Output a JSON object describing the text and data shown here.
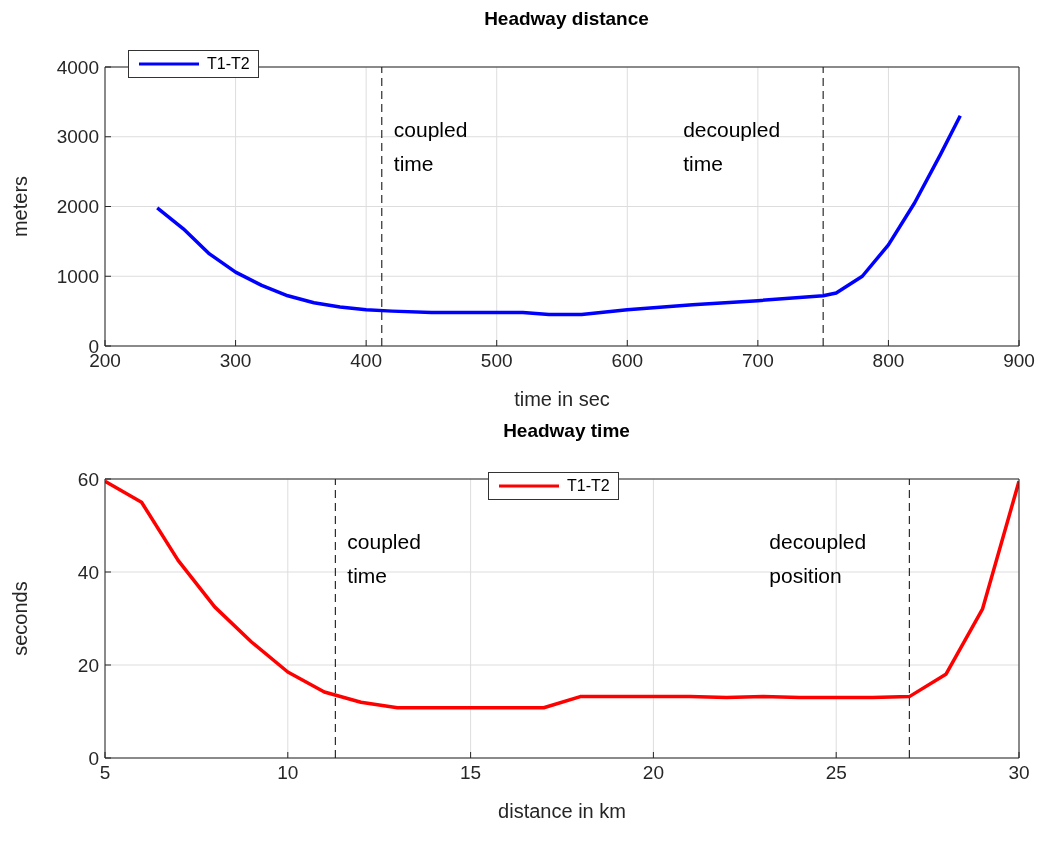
{
  "chart_data": [
    {
      "type": "line",
      "title": "Headway distance",
      "xlabel": "time in sec",
      "ylabel": "meters",
      "xlim": [
        200,
        900
      ],
      "xticks": [
        200,
        300,
        400,
        500,
        600,
        700,
        800,
        900
      ],
      "ylim": [
        0,
        4000
      ],
      "yticks": [
        0,
        1000,
        2000,
        3000,
        4000
      ],
      "grid": true,
      "legend": "top left",
      "marker": "none",
      "line_style": "solid",
      "x": [
        240,
        260,
        280,
        300,
        320,
        340,
        360,
        380,
        400,
        420,
        450,
        520,
        540,
        565,
        600,
        650,
        700,
        750,
        760,
        780,
        800,
        820,
        840,
        855
      ],
      "series": [
        {
          "name": "T1-T2",
          "color": "#0000ff",
          "values": [
            1980,
            1680,
            1320,
            1060,
            870,
            720,
            620,
            560,
            520,
            500,
            480,
            480,
            450,
            450,
            520,
            590,
            650,
            720,
            760,
            1000,
            1450,
            2050,
            2750,
            3300
          ]
        }
      ],
      "ref_lines": [
        {
          "axis": "x",
          "value": 412,
          "label": "coupled time",
          "line_style": "dashed",
          "color": "#000000"
        },
        {
          "axis": "x",
          "value": 750,
          "label": "decoupled time",
          "line_style": "dashed",
          "color": "#000000"
        }
      ]
    },
    {
      "type": "line",
      "title": "Headway time",
      "xlabel": "distance in km",
      "ylabel": "seconds",
      "xlim": [
        5,
        30
      ],
      "xticks": [
        5,
        10,
        15,
        20,
        25,
        30
      ],
      "ylim": [
        0,
        60
      ],
      "yticks": [
        0,
        20,
        40,
        60
      ],
      "grid": true,
      "legend": "top",
      "marker": "none",
      "line_style": "solid",
      "x": [
        5,
        6,
        7,
        8,
        9,
        10,
        11,
        12,
        13,
        14,
        15,
        16,
        17,
        18,
        19,
        20,
        21,
        22,
        23,
        24,
        25,
        26,
        27,
        28,
        29,
        30
      ],
      "series": [
        {
          "name": "T1-T2",
          "color": "#ff0000",
          "values": [
            59.5,
            55,
            42.5,
            32.5,
            25,
            18.5,
            14.2,
            12,
            10.8,
            10.8,
            10.8,
            10.8,
            10.8,
            13.2,
            13.2,
            13.2,
            13.2,
            13,
            13.2,
            13,
            13,
            13,
            13.2,
            18,
            32,
            59.5
          ]
        }
      ],
      "ref_lines": [
        {
          "axis": "x",
          "value": 11.3,
          "label": "coupled time",
          "line_style": "dashed",
          "color": "#000000"
        },
        {
          "axis": "x",
          "value": 27,
          "label": "decoupled position",
          "line_style": "dashed",
          "color": "#000000"
        }
      ]
    }
  ]
}
